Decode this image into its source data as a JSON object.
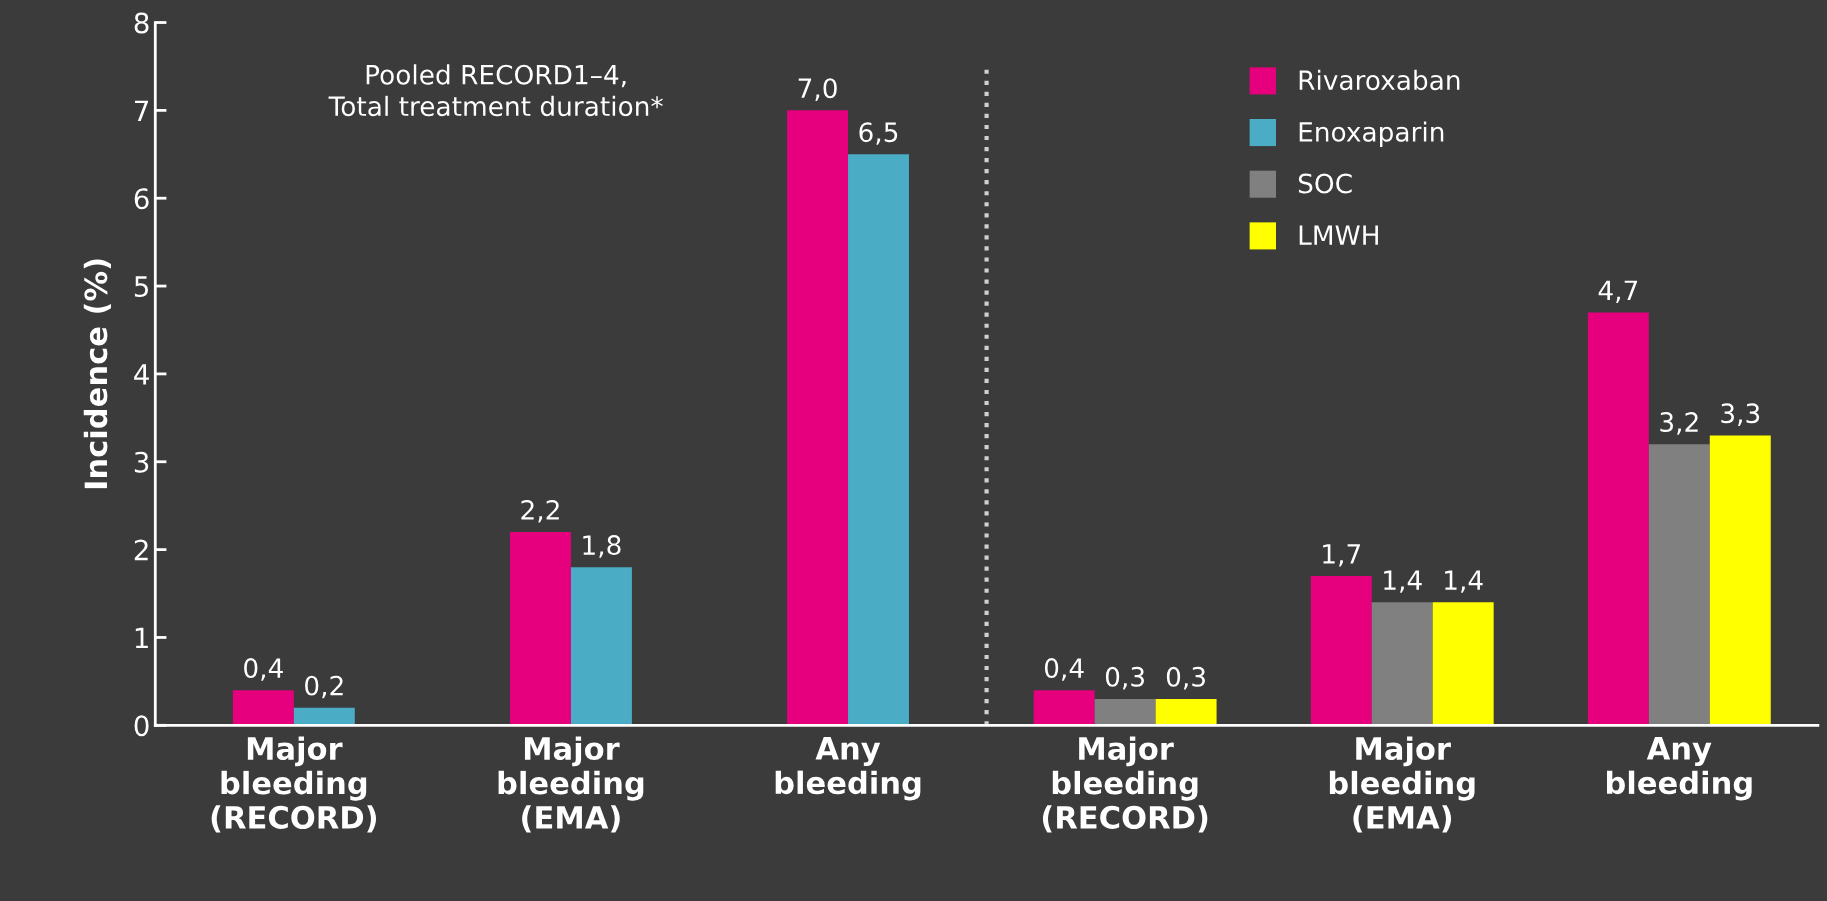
{
  "chart_data": {
    "type": "bar",
    "ylabel": "Incidence (%)",
    "categories": [
      "Major\nbleeding\n(RECORD)",
      "Major\nbleeding\n(EMA)",
      "Any\nbleeding",
      "Major\nbleeding\n(RECORD)",
      "Major\nbleeding\n(EMA)",
      "Any\nbleeding"
    ],
    "series": [
      {
        "name": "Rivaroxaban",
        "color": "#e6007e",
        "values": [
          0.4,
          2.2,
          7.0,
          0.4,
          1.7,
          4.7
        ],
        "value_labels": [
          "0,4",
          "2,2",
          "7,0",
          "0,4",
          "1,7",
          "4,7"
        ]
      },
      {
        "name": "Enoxaparin",
        "color": "#4bacc6",
        "values": [
          0.2,
          1.8,
          6.5,
          null,
          null,
          null
        ],
        "value_labels": [
          "0,2",
          "1,8",
          "6,5",
          null,
          null,
          null
        ]
      },
      {
        "name": "SOC",
        "color": "#808080",
        "values": [
          null,
          null,
          null,
          0.3,
          1.4,
          3.2
        ],
        "value_labels": [
          null,
          null,
          null,
          "0,3",
          "1,4",
          "3,2"
        ]
      },
      {
        "name": "LMWH",
        "color": "#ffff00",
        "values": [
          null,
          null,
          null,
          0.3,
          1.4,
          3.3
        ],
        "value_labels": [
          null,
          null,
          null,
          "0,3",
          "1,4",
          "3,3"
        ]
      }
    ],
    "ylim": [
      0,
      8
    ],
    "yticks": [
      0,
      1,
      2,
      3,
      4,
      5,
      6,
      7,
      8
    ],
    "annotations": [
      "Pooled RECORD1–4,\nTotal treatment duration*"
    ],
    "grid": false,
    "legend": "top right"
  }
}
